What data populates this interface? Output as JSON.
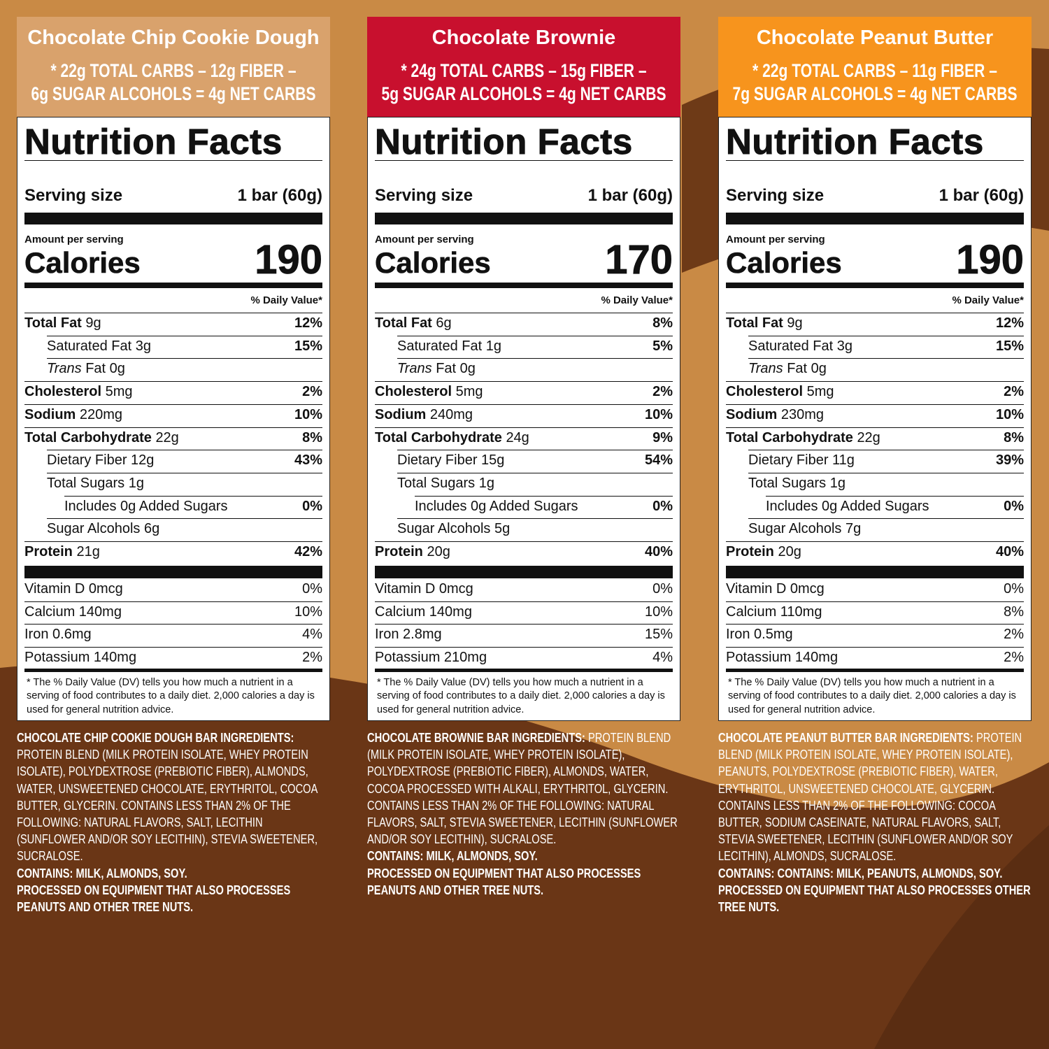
{
  "panels": [
    {
      "flavor": "Chocolate Chip Cookie Dough",
      "color": "#d9a26c",
      "carbs_line1": "* 22g TOTAL CARBS – 12g FIBER –",
      "carbs_line2": "6g SUGAR ALCOHOLS = 4g NET CARBS",
      "heading": "Nutrition Facts",
      "serving_label": "Serving size",
      "serving_value": "1 bar (60g)",
      "amount_label": "Amount per serving",
      "calories_label": "Calories",
      "calories": 190,
      "dv_header": "% Daily Value*",
      "rows": [
        {
          "name": "Total Fat",
          "amount": "9g",
          "dv": "12%"
        },
        {
          "name": "Saturated Fat",
          "amount": "3g",
          "dv": "15%"
        },
        {
          "name_italic": "Trans",
          "name": "Fat",
          "amount": "0g"
        },
        {
          "name": "Cholesterol",
          "amount": "5mg",
          "dv": "2%"
        },
        {
          "name": "Sodium",
          "amount": "220mg",
          "dv": "10%"
        },
        {
          "name": "Total Carbohydrate",
          "amount": "22g",
          "dv": "8%"
        },
        {
          "name": "Dietary Fiber",
          "amount": "12g",
          "dv": "43%"
        },
        {
          "name": "Total Sugars",
          "amount": "1g"
        },
        {
          "name": "Includes 0g Added Sugars",
          "dv": "0%"
        },
        {
          "name": "Sugar Alcohols",
          "amount": "6g"
        },
        {
          "name": "Protein",
          "amount": "21g",
          "dv": "42%"
        }
      ],
      "vitamins": [
        {
          "name": "Vitamin D 0mcg",
          "dv": "0%"
        },
        {
          "name": "Calcium 140mg",
          "dv": "10%"
        },
        {
          "name": "Iron 0.6mg",
          "dv": "4%"
        },
        {
          "name": "Potassium 140mg",
          "dv": "2%"
        }
      ],
      "footnote": "* The % Daily Value (DV) tells you how much a nutrient in a serving of food contributes to a daily diet. 2,000 calories a day is used for general nutrition advice.",
      "ingredients": {
        "label": "CHOCOLATE CHIP COOKIE DOUGH BAR INGREDIENTS:",
        "text": "PROTEIN BLEND (MILK PROTEIN ISOLATE, WHEY PROTEIN ISOLATE), POLYDEXTROSE (PREBIOTIC FIBER), ALMONDS, WATER, UNSWEETENED CHOCOLATE, ERYTHRITOL, COCOA BUTTER, GLYCERIN. CONTAINS LESS THAN 2% OF THE FOLLOWING: NATURAL FLAVORS, SALT, LECITHIN (SUNFLOWER AND/OR SOY LECITHIN), STEVIA SWEETENER, SUCRALOSE.",
        "contains": "CONTAINS: MILK, ALMONDS, SOY.",
        "processed": "PROCESSED ON EQUIPMENT THAT ALSO PROCESSES PEANUTS AND OTHER TREE NUTS."
      }
    },
    {
      "flavor": "Chocolate Brownie",
      "color": "#c8102e",
      "carbs_line1": "* 24g TOTAL CARBS – 15g FIBER –",
      "carbs_line2": "5g SUGAR ALCOHOLS = 4g NET CARBS",
      "heading": "Nutrition Facts",
      "serving_label": "Serving size",
      "serving_value": "1 bar (60g)",
      "amount_label": "Amount per serving",
      "calories_label": "Calories",
      "calories": 170,
      "dv_header": "% Daily Value*",
      "rows": [
        {
          "name": "Total Fat",
          "amount": "6g",
          "dv": "8%"
        },
        {
          "name": "Saturated Fat",
          "amount": "1g",
          "dv": "5%"
        },
        {
          "name_italic": "Trans",
          "name": "Fat",
          "amount": "0g"
        },
        {
          "name": "Cholesterol",
          "amount": "5mg",
          "dv": "2%"
        },
        {
          "name": "Sodium",
          "amount": "240mg",
          "dv": "10%"
        },
        {
          "name": "Total Carbohydrate",
          "amount": "24g",
          "dv": "9%"
        },
        {
          "name": "Dietary Fiber",
          "amount": "15g",
          "dv": "54%"
        },
        {
          "name": "Total Sugars",
          "amount": "1g"
        },
        {
          "name": "Includes 0g Added Sugars",
          "dv": "0%"
        },
        {
          "name": "Sugar Alcohols",
          "amount": "5g"
        },
        {
          "name": "Protein",
          "amount": "20g",
          "dv": "40%"
        }
      ],
      "vitamins": [
        {
          "name": "Vitamin D 0mcg",
          "dv": "0%"
        },
        {
          "name": "Calcium 140mg",
          "dv": "10%"
        },
        {
          "name": "Iron 2.8mg",
          "dv": "15%"
        },
        {
          "name": "Potassium 210mg",
          "dv": "4%"
        }
      ],
      "footnote": "* The % Daily Value (DV) tells you how much a nutrient in a serving of food contributes to a daily diet. 2,000 calories a day is used for general nutrition advice.",
      "ingredients": {
        "label": "CHOCOLATE BROWNIE BAR INGREDIENTS:",
        "text": "PROTEIN BLEND (MILK PROTEIN ISOLATE, WHEY PROTEIN ISOLATE), POLYDEXTROSE (PREBIOTIC FIBER), ALMONDS, WATER, COCOA PROCESSED WITH ALKALI, ERYTHRITOL, GLYCERIN. CONTAINS LESS THAN 2% OF THE FOLLOWING: NATURAL FLAVORS, SALT, STEVIA SWEETENER, LECITHIN (SUNFLOWER AND/OR SOY LECITHIN), SUCRALOSE.",
        "contains": "CONTAINS: MILK, ALMONDS, SOY.",
        "processed": "PROCESSED ON EQUIPMENT THAT ALSO PROCESSES PEANUTS AND OTHER TREE NUTS."
      }
    },
    {
      "flavor": "Chocolate Peanut Butter",
      "color": "#f7941d",
      "carbs_line1": "* 22g TOTAL CARBS – 11g FIBER –",
      "carbs_line2": "7g SUGAR ALCOHOLS = 4g NET CARBS",
      "heading": "Nutrition Facts",
      "serving_label": "Serving size",
      "serving_value": "1 bar (60g)",
      "amount_label": "Amount per serving",
      "calories_label": "Calories",
      "calories": 190,
      "dv_header": "% Daily Value*",
      "rows": [
        {
          "name": "Total Fat",
          "amount": "9g",
          "dv": "12%"
        },
        {
          "name": "Saturated Fat",
          "amount": "3g",
          "dv": "15%"
        },
        {
          "name_italic": "Trans",
          "name": "Fat",
          "amount": "0g"
        },
        {
          "name": "Cholesterol",
          "amount": "5mg",
          "dv": "2%"
        },
        {
          "name": "Sodium",
          "amount": "230mg",
          "dv": "10%"
        },
        {
          "name": "Total Carbohydrate",
          "amount": "22g",
          "dv": "8%"
        },
        {
          "name": "Dietary Fiber",
          "amount": "11g",
          "dv": "39%"
        },
        {
          "name": "Total Sugars",
          "amount": "1g"
        },
        {
          "name": "Includes 0g Added Sugars",
          "dv": "0%"
        },
        {
          "name": "Sugar Alcohols",
          "amount": "7g"
        },
        {
          "name": "Protein",
          "amount": "20g",
          "dv": "40%"
        }
      ],
      "vitamins": [
        {
          "name": "Vitamin D 0mcg",
          "dv": "0%"
        },
        {
          "name": "Calcium 110mg",
          "dv": "8%"
        },
        {
          "name": "Iron 0.5mg",
          "dv": "2%"
        },
        {
          "name": "Potassium 140mg",
          "dv": "2%"
        }
      ],
      "footnote": "* The % Daily Value (DV) tells you how much a nutrient in a serving of food contributes to a daily diet. 2,000 calories a day is used for general nutrition advice.",
      "ingredients": {
        "label": "CHOCOLATE PEANUT BUTTER BAR INGREDIENTS:",
        "text": "PROTEIN BLEND (MILK PROTEIN ISOLATE, WHEY PROTEIN ISOLATE), PEANUTS, POLYDEXTROSE (PREBIOTIC FIBER), WATER, ERYTHRITOL, UNSWEETENED CHOCOLATE, GLYCERIN. CONTAINS LESS THAN 2% OF THE FOLLOWING: COCOA BUTTER, SODIUM CASEINATE, NATURAL FLAVORS, SALT, STEVIA SWEETENER, LECITHIN (SUNFLOWER AND/OR SOY LECITHIN), ALMONDS, SUCRALOSE.",
        "contains": "CONTAINS: CONTAINS: MILK, PEANUTS, ALMONDS, SOY.",
        "processed": "PROCESSED ON EQUIPMENT THAT ALSO PROCESSES OTHER TREE NUTS."
      }
    }
  ]
}
